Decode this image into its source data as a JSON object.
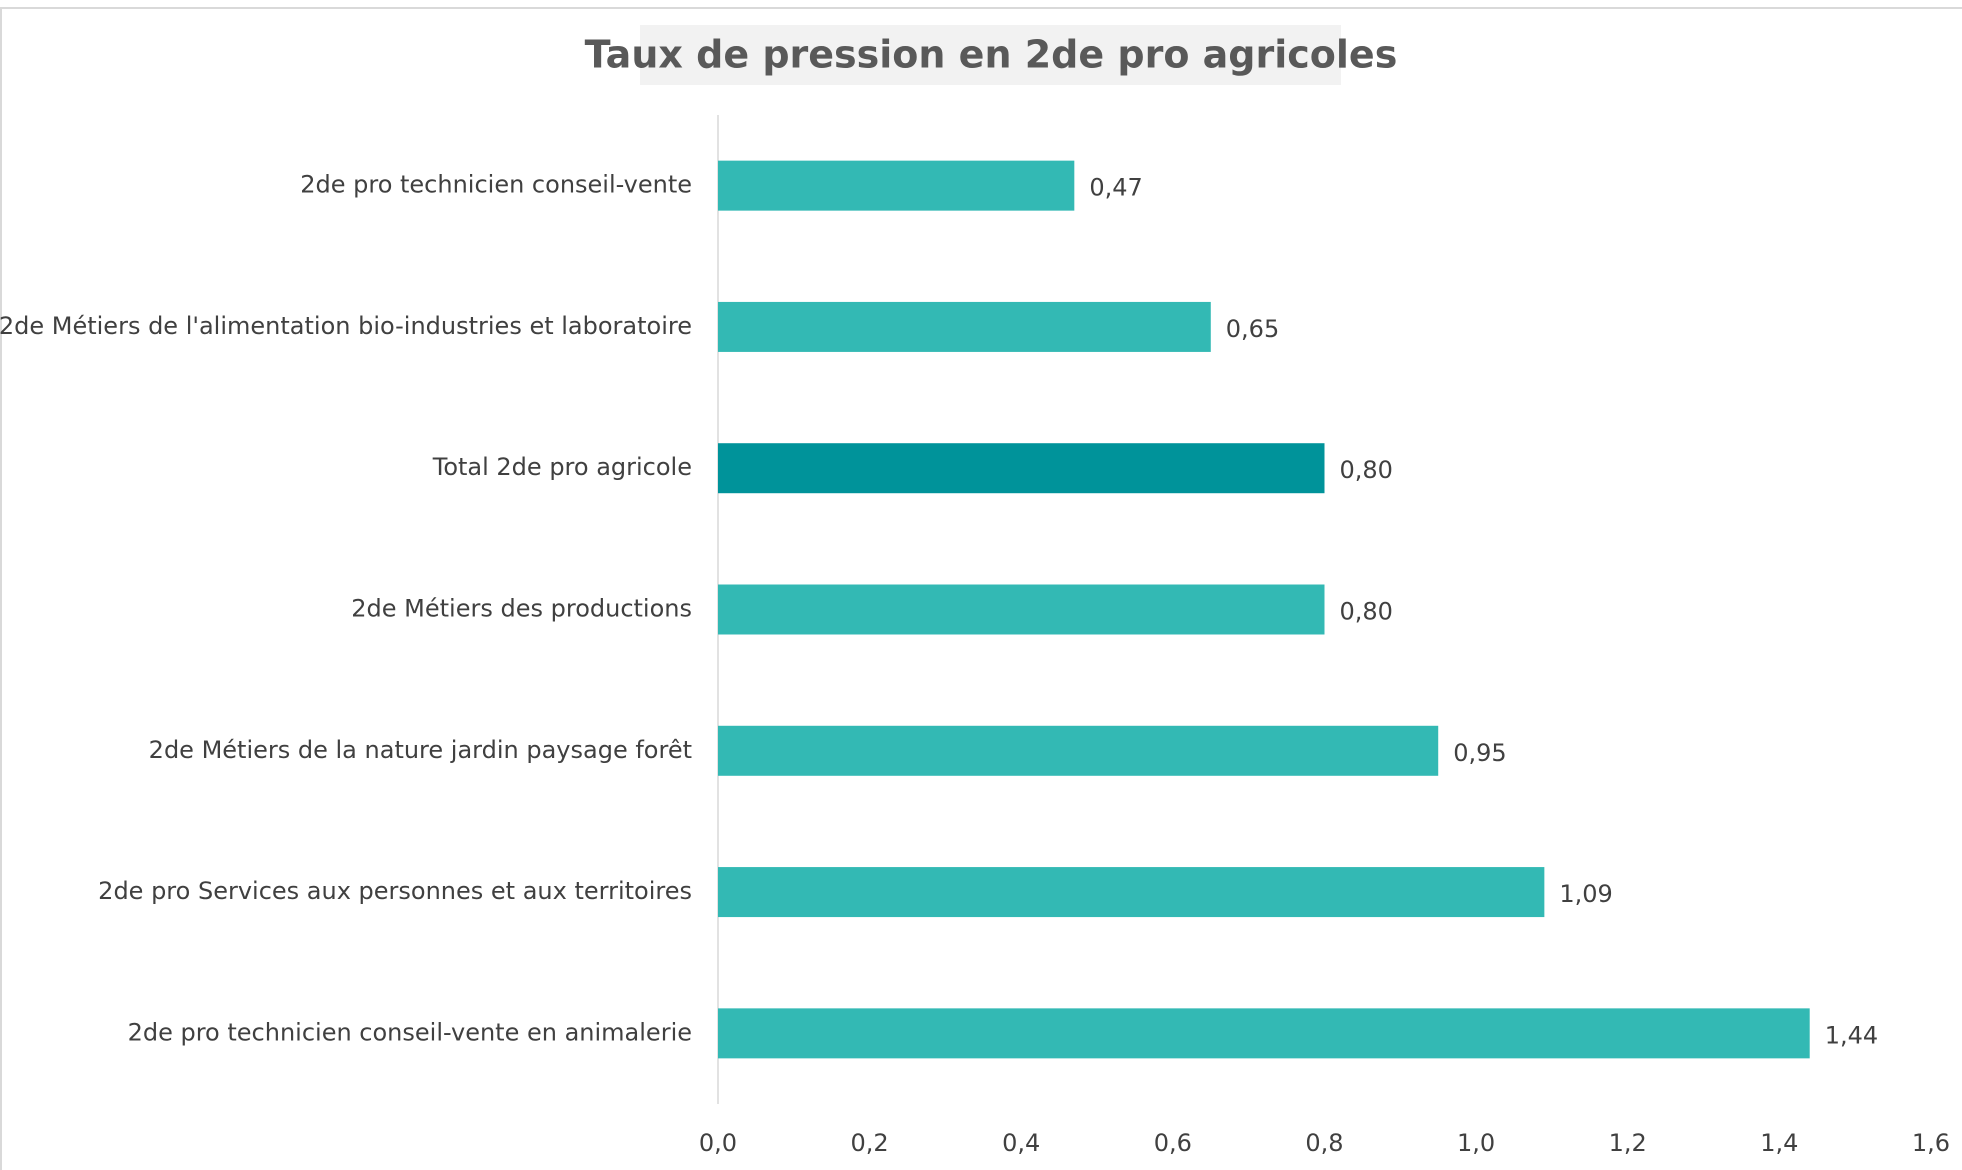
{
  "chart_data": {
    "type": "hbar",
    "title": "Taux de pression en 2de pro agricoles",
    "categories": [
      "2de pro technicien conseil-vente",
      "2de Métiers de l'alimentation bio-industries et laboratoire",
      "Total 2de pro agricole",
      "2de Métiers des productions",
      "2de Métiers de la nature jardin paysage forêt",
      "2de pro Services aux personnes et aux territoires",
      "2de pro technicien conseil-vente en animalerie"
    ],
    "values": [
      0.47,
      0.65,
      0.8,
      0.8,
      0.95,
      1.09,
      1.44
    ],
    "value_labels": [
      "0,47",
      "0,65",
      "0,80",
      "0,80",
      "0,95",
      "1,09",
      "1,44"
    ],
    "colors": [
      "#33b9b4",
      "#33b9b4",
      "#00939a",
      "#33b9b4",
      "#33b9b4",
      "#33b9b4",
      "#33b9b4"
    ],
    "xlim": [
      0,
      1.6
    ],
    "xticks": [
      {
        "value": 0,
        "label": "0,0"
      },
      {
        "value": 0.2,
        "label": "0,2"
      },
      {
        "value": 0.4,
        "label": "0,4"
      },
      {
        "value": 0.6,
        "label": "0,6"
      },
      {
        "value": 0.8,
        "label": "0,8"
      },
      {
        "value": 1.0,
        "label": "1,0"
      },
      {
        "value": 1.2,
        "label": "1,2"
      },
      {
        "value": 1.4,
        "label": "1,4"
      },
      {
        "value": 1.6,
        "label": "1,6"
      }
    ],
    "grid": false
  }
}
